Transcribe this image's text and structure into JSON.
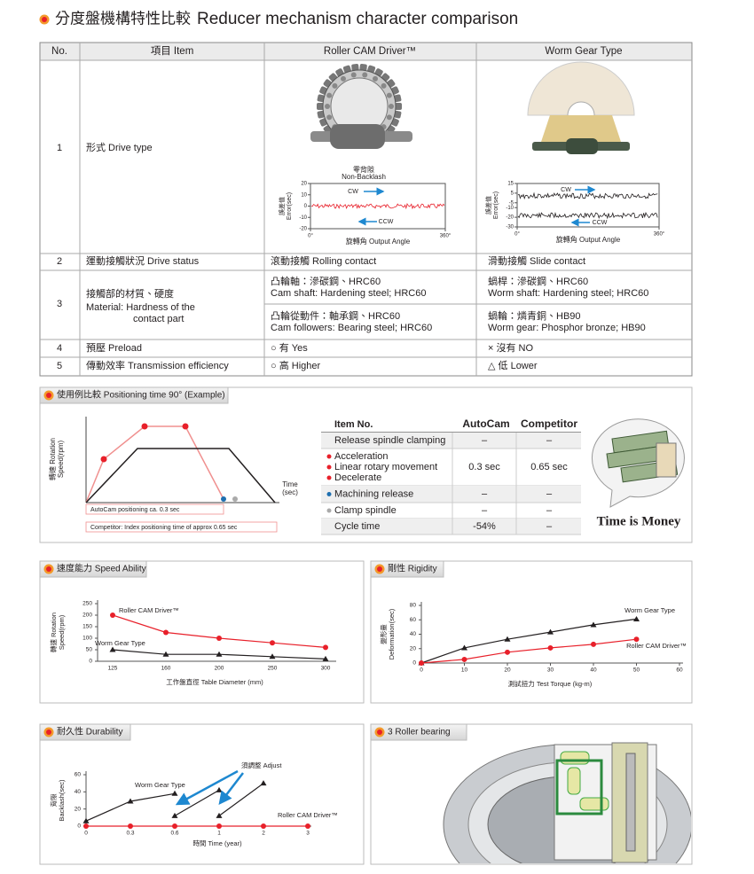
{
  "header": {
    "title_zh": "分度盤機構特性比較",
    "title_en": "Reducer mechanism character comparison"
  },
  "comparison": {
    "headers": [
      "No.",
      "項目 Item",
      "Roller CAM Driver™",
      "Worm Gear Type"
    ],
    "rows": [
      {
        "no": "1",
        "item": [
          "形式 Drive type"
        ]
      },
      {
        "no": "2",
        "item": [
          "運動接觸狀況 Drive status"
        ],
        "roller": [
          "滾動接觸 Rolling contact"
        ],
        "worm": [
          "滑動接觸 Slide contact"
        ]
      },
      {
        "no": "3",
        "item": [
          "接觸部的材質、硬度",
          "Material: Hardness of the",
          "contact part"
        ],
        "roller": [
          "凸輪軸：滲碳鋼、HRC60",
          "Cam shaft: Hardening steel; HRC60",
          "凸輪從動件：軸承鋼、HRC60",
          "Cam followers: Bearing steel; HRC60"
        ],
        "worm": [
          "蝸桿：滲碳鋼、HRC60",
          "Worm shaft: Hardening steel; HRC60",
          "蝸輪：燐青銅、HB90",
          "Worm gear: Phosphor bronze; HB90"
        ]
      },
      {
        "no": "4",
        "item": [
          "預壓 Preload"
        ],
        "roller": [
          "○ 有 Yes"
        ],
        "worm": [
          "× 沒有 NO"
        ]
      },
      {
        "no": "5",
        "item": [
          "傳動效率 Transmission efficiency"
        ],
        "roller": [
          "○ 高  Higher"
        ],
        "worm": [
          "△ 低  Lower"
        ]
      }
    ],
    "roller_figure": {
      "caption": [
        "零背隙",
        "Non-Backlash"
      ],
      "chart": {
        "ylabel": [
          "誤差值",
          "Error(sec)"
        ],
        "ylim": [
          -20,
          20
        ],
        "yticks": [
          20,
          10,
          0,
          -10,
          -20
        ],
        "xlim": [
          0,
          360
        ],
        "xticks": [
          {
            "value": 0,
            "label": "0°"
          },
          {
            "value": 360,
            "label": "360°"
          }
        ],
        "xlabel": "旋轉角 Output Angle",
        "annotations": [
          "CW",
          "CCW"
        ],
        "color": "#e8202a"
      }
    },
    "worm_figure": {
      "chart": {
        "ylabel": [
          "誤差值",
          "Error(sec)"
        ],
        "ylim": [
          -30,
          15
        ],
        "yticks": [
          15,
          5,
          -5,
          -10,
          -20,
          -30
        ],
        "xlim": [
          0,
          360
        ],
        "xticks": [
          {
            "value": 0,
            "label": "0°"
          },
          {
            "value": 360,
            "label": "360°"
          }
        ],
        "xlabel": "旋轉角 Output Angle",
        "annotations": [
          "CW",
          "CCW"
        ],
        "color": "#231f20"
      }
    }
  },
  "positioning": {
    "title": "使用例比較  Positioning time 90° (Example)",
    "ylabel": [
      "轉速 Rotation",
      "Speed(rpm)"
    ],
    "xlabel": [
      "Time",
      "(sec)"
    ],
    "notes": [
      "AutoCam positioning ca. 0.3 sec",
      "Competitor: Index positioning time of approx 0.65 sec"
    ],
    "table": {
      "headers": [
        "Item No.",
        "AutoCam",
        "Competitor"
      ],
      "rows": [
        [
          "Release spindle clamping",
          "–",
          "–"
        ],
        [
          [
            "Acceleration",
            "Linear rotary movement",
            "Decelerate"
          ],
          "0.3 sec",
          "0.65 sec"
        ],
        [
          "Machining release",
          "–",
          "–"
        ],
        [
          "Clamp spindle",
          "–",
          "–"
        ],
        [
          "Cycle time",
          "-54%",
          "–"
        ]
      ]
    },
    "slogan": "Time is Money"
  },
  "speed": {
    "title": "速度能力 Speed Ability",
    "chart": {
      "type": "line",
      "categories": [
        "125",
        "160",
        "200",
        "250",
        "300"
      ],
      "series": [
        {
          "name": "Roller CAM Driver™",
          "color": "#e8202a",
          "marker": "circle",
          "values": [
            200,
            125,
            100,
            80,
            60
          ]
        },
        {
          "name": "Worm Gear Type",
          "color": "#231f20",
          "marker": "triangle",
          "values": [
            50,
            30,
            30,
            20,
            10
          ]
        }
      ],
      "ylim": [
        0,
        250
      ],
      "yticks": [
        0,
        50,
        100,
        150,
        200,
        250
      ],
      "ylabel": [
        "轉速 Rotation",
        "Speed(rpm)"
      ],
      "xlabel": "工作盤直徑 Table Diameter (mm)"
    }
  },
  "rigidity": {
    "title": "剛性 Rigidity",
    "chart": {
      "type": "line",
      "x": [
        0,
        10,
        20,
        30,
        40,
        50
      ],
      "series": [
        {
          "name": "Worm Gear Type",
          "color": "#231f20",
          "marker": "triangle",
          "values": [
            0,
            21,
            33,
            43,
            53,
            61
          ]
        },
        {
          "name": "Roller CAM Driver™",
          "color": "#e8202a",
          "marker": "circle",
          "values": [
            0,
            5,
            15,
            21,
            26,
            33
          ]
        }
      ],
      "xlim": [
        0,
        60
      ],
      "xticks": [
        0,
        10,
        20,
        30,
        40,
        50,
        60
      ],
      "ylim": [
        0,
        80
      ],
      "yticks": [
        0,
        20,
        40,
        60,
        80
      ],
      "ylabel": [
        "變形量",
        "Deformation(sec)"
      ],
      "xlabel": "測試扭力 Test Torque (kg-m)"
    }
  },
  "durability": {
    "title": "耐久性  Durability",
    "chart": {
      "type": "line",
      "categories": [
        "0",
        "0.3",
        "0.6",
        "1",
        "2",
        "3"
      ],
      "series": [
        {
          "name": "Worm Gear Type",
          "color": "#231f20",
          "marker": "triangle",
          "x": [
            "0",
            "0.3",
            "0.6",
            null,
            "0.6",
            "1",
            null,
            "1",
            "2"
          ],
          "values": [
            6,
            29,
            38,
            null,
            12,
            42,
            null,
            12,
            50
          ]
        },
        {
          "name": "Roller CAM Driver™",
          "color": "#e8202a",
          "marker": "circle",
          "x": [
            "0",
            "0.3",
            "0.6",
            "1",
            "2",
            "3"
          ],
          "values": [
            0,
            0,
            0,
            0,
            0,
            0
          ]
        }
      ],
      "ylim": [
        0,
        60
      ],
      "yticks": [
        0,
        20,
        40,
        60
      ],
      "ylabel": [
        "背隙",
        "Backlash(sec)"
      ],
      "xlabel": "時間 Time (year)",
      "annotation": "須調整  Adjust"
    }
  },
  "bearing": {
    "title": "3 Roller bearing"
  }
}
